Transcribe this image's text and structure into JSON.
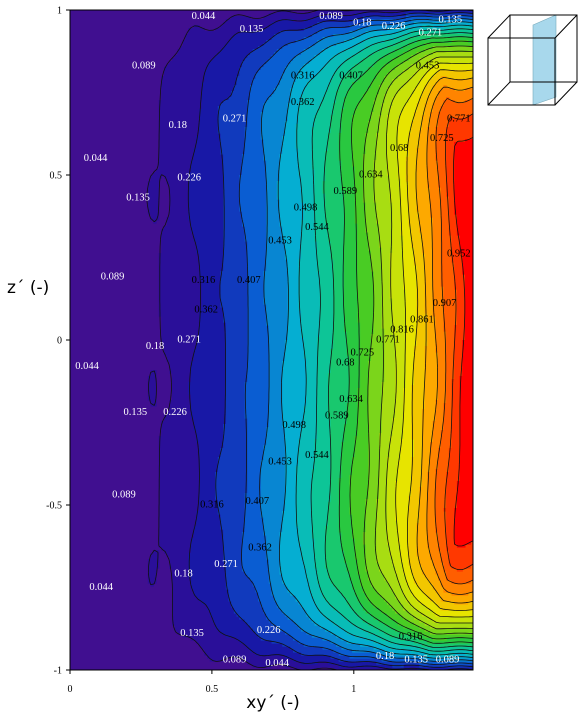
{
  "chart_data": {
    "type": "heatmap",
    "subtype": "filled-contour",
    "xlabel": "xy´ (-)",
    "ylabel": "z´ (-)",
    "xlim": [
      0,
      1.42
    ],
    "ylim": [
      -1,
      1
    ],
    "x_ticks": [
      "0",
      "0.5",
      "1"
    ],
    "y_ticks": [
      "1",
      "0.5",
      "0",
      "-0.5",
      "-1"
    ],
    "colormap": [
      "#4b0f8c",
      "#1a0fa0",
      "#0a5ad2",
      "#05b4d2",
      "#0fc88c",
      "#32c828",
      "#a0dc14",
      "#e6e600",
      "#ffa500",
      "#ff5000",
      "#ff0000"
    ],
    "levels": [
      0.044,
      0.089,
      0.135,
      0.18,
      0.226,
      0.271,
      0.316,
      0.362,
      0.407,
      0.453,
      0.498,
      0.544,
      0.589,
      0.634,
      0.68,
      0.725,
      0.771,
      0.816,
      0.861,
      0.907,
      0.952
    ],
    "level_labels": [
      "0.044",
      "0.089",
      "0.135",
      "0.18",
      "0.226",
      "0.271",
      "0.316",
      "0.362",
      "0.407",
      "0.453",
      "0.498",
      "0.544",
      "0.589",
      "0.634",
      "0.68",
      "0.725",
      "0.771",
      "0.816",
      "0.861",
      "0.907",
      "0.952"
    ],
    "field": {
      "max_value": 1.0,
      "min_value": 0.0
    },
    "contour_labels": [
      {
        "text": "0.044",
        "x": 0.47,
        "y": 0.98
      },
      {
        "text": "0.135",
        "x": 0.64,
        "y": 0.94
      },
      {
        "text": "0.089",
        "x": 0.92,
        "y": 0.98
      },
      {
        "text": "0.18",
        "x": 1.03,
        "y": 0.96
      },
      {
        "text": "0.226",
        "x": 1.14,
        "y": 0.95
      },
      {
        "text": "0.135",
        "x": 1.34,
        "y": 0.97
      },
      {
        "text": "0.271",
        "x": 1.27,
        "y": 0.93
      },
      {
        "text": "0.089",
        "x": 0.26,
        "y": 0.83
      },
      {
        "text": "0.316",
        "x": 0.82,
        "y": 0.8
      },
      {
        "text": "0.407",
        "x": 0.99,
        "y": 0.8
      },
      {
        "text": "0.453",
        "x": 1.26,
        "y": 0.83
      },
      {
        "text": "0.362",
        "x": 0.82,
        "y": 0.72
      },
      {
        "text": "0.18",
        "x": 0.38,
        "y": 0.65
      },
      {
        "text": "0.271",
        "x": 0.58,
        "y": 0.67
      },
      {
        "text": "0.771",
        "x": 1.37,
        "y": 0.67
      },
      {
        "text": "0.725",
        "x": 1.31,
        "y": 0.61
      },
      {
        "text": "0.68",
        "x": 1.16,
        "y": 0.58
      },
      {
        "text": "0.044",
        "x": 0.09,
        "y": 0.55
      },
      {
        "text": "0.226",
        "x": 0.42,
        "y": 0.49
      },
      {
        "text": "0.634",
        "x": 1.06,
        "y": 0.5
      },
      {
        "text": "0.589",
        "x": 0.97,
        "y": 0.45
      },
      {
        "text": "0.135",
        "x": 0.24,
        "y": 0.43
      },
      {
        "text": "0.498",
        "x": 0.83,
        "y": 0.4
      },
      {
        "text": "0.544",
        "x": 0.87,
        "y": 0.34
      },
      {
        "text": "0.453",
        "x": 0.74,
        "y": 0.3
      },
      {
        "text": "0.952",
        "x": 1.37,
        "y": 0.26
      },
      {
        "text": "0.089",
        "x": 0.15,
        "y": 0.19
      },
      {
        "text": "0.316",
        "x": 0.47,
        "y": 0.18
      },
      {
        "text": "0.407",
        "x": 0.63,
        "y": 0.18
      },
      {
        "text": "0.362",
        "x": 0.48,
        "y": 0.09
      },
      {
        "text": "0.907",
        "x": 1.32,
        "y": 0.11
      },
      {
        "text": "0.861",
        "x": 1.24,
        "y": 0.06
      },
      {
        "text": "0.816",
        "x": 1.17,
        "y": 0.03
      },
      {
        "text": "0.18",
        "x": 0.3,
        "y": -0.02
      },
      {
        "text": "0.271",
        "x": 0.42,
        "y": 0.0
      },
      {
        "text": "0.771",
        "x": 1.12,
        "y": 0.0
      },
      {
        "text": "0.725",
        "x": 1.03,
        "y": -0.04
      },
      {
        "text": "0.68",
        "x": 0.97,
        "y": -0.07
      },
      {
        "text": "0.044",
        "x": 0.06,
        "y": -0.08
      },
      {
        "text": "0.634",
        "x": 0.99,
        "y": -0.18
      },
      {
        "text": "0.135",
        "x": 0.23,
        "y": -0.22
      },
      {
        "text": "0.226",
        "x": 0.37,
        "y": -0.22
      },
      {
        "text": "0.589",
        "x": 0.94,
        "y": -0.23
      },
      {
        "text": "0.498",
        "x": 0.79,
        "y": -0.26
      },
      {
        "text": "0.544",
        "x": 0.87,
        "y": -0.35
      },
      {
        "text": "0.453",
        "x": 0.74,
        "y": -0.37
      },
      {
        "text": "0.089",
        "x": 0.19,
        "y": -0.47
      },
      {
        "text": "0.316",
        "x": 0.5,
        "y": -0.5
      },
      {
        "text": "0.407",
        "x": 0.66,
        "y": -0.49
      },
      {
        "text": "0.362",
        "x": 0.67,
        "y": -0.63
      },
      {
        "text": "0.18",
        "x": 0.4,
        "y": -0.71
      },
      {
        "text": "0.271",
        "x": 0.55,
        "y": -0.68
      },
      {
        "text": "0.044",
        "x": 0.11,
        "y": -0.75
      },
      {
        "text": "0.226",
        "x": 0.7,
        "y": -0.88
      },
      {
        "text": "0.135",
        "x": 0.43,
        "y": -0.89
      },
      {
        "text": "0.316",
        "x": 1.2,
        "y": -0.9
      },
      {
        "text": "0.089",
        "x": 0.58,
        "y": -0.97
      },
      {
        "text": "0.044",
        "x": 0.73,
        "y": -0.98
      },
      {
        "text": "0.18",
        "x": 1.11,
        "y": -0.96
      },
      {
        "text": "0.135",
        "x": 1.22,
        "y": -0.97
      },
      {
        "text": "0.089",
        "x": 1.33,
        "y": -0.97
      }
    ]
  },
  "inset": {
    "icon": "cube-slice-icon",
    "plane_color": "#a8d8ec"
  }
}
